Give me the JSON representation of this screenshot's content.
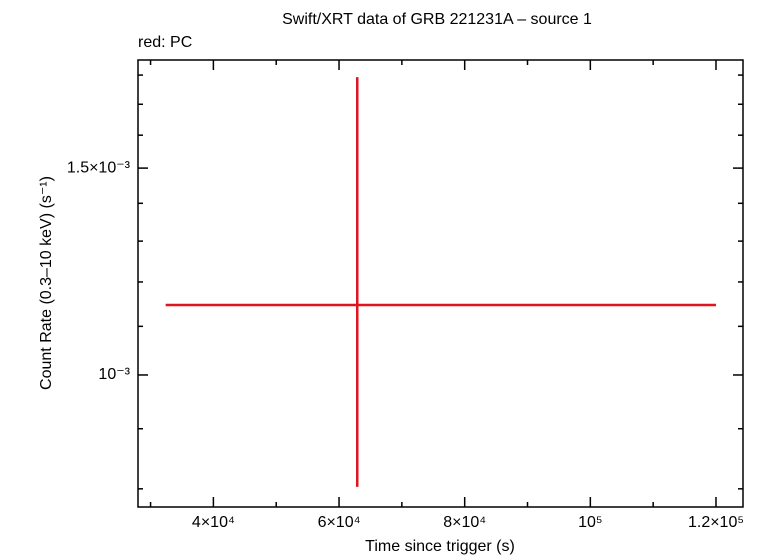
{
  "chart_data": {
    "type": "errorbar",
    "title": "Swift/XRT data of GRB 221231A – source 1",
    "annotation": "red: PC",
    "x_label": "Time since trigger (s)",
    "y_label": "Count Rate (0.3–10 keV) (s⁻¹)",
    "y_scale": "log",
    "xlim": [
      28000,
      124300
    ],
    "ylim": [
      0.000772,
      0.001854
    ],
    "xticks": [
      {
        "value": 40000,
        "label": "4×10⁴"
      },
      {
        "value": 60000,
        "label": "6×10⁴"
      },
      {
        "value": 80000,
        "label": "8×10⁴"
      },
      {
        "value": 100000,
        "label": "10⁵"
      },
      {
        "value": 120000,
        "label": "1.2×10⁵"
      }
    ],
    "xminorticks": [
      30000,
      50000,
      70000,
      90000,
      110000
    ],
    "yticks": [
      {
        "value": 0.001,
        "label": "10⁻³"
      },
      {
        "value": 0.0015,
        "label": "1.5×10⁻³"
      }
    ],
    "yminorticks": [
      0.0008,
      0.0009,
      0.0011,
      0.0012,
      0.0013,
      0.0014,
      0.0016,
      0.0017,
      0.0018
    ],
    "series": [
      {
        "color": "#e0141e",
        "x": [
          62900
        ],
        "xerr_minus": [
          30500
        ],
        "xerr_plus": [
          57100
        ],
        "values": [
          0.001147
        ],
        "yerr_minus": [
          0.000344
        ],
        "yerr_plus": [
          0.000646
        ]
      }
    ]
  }
}
